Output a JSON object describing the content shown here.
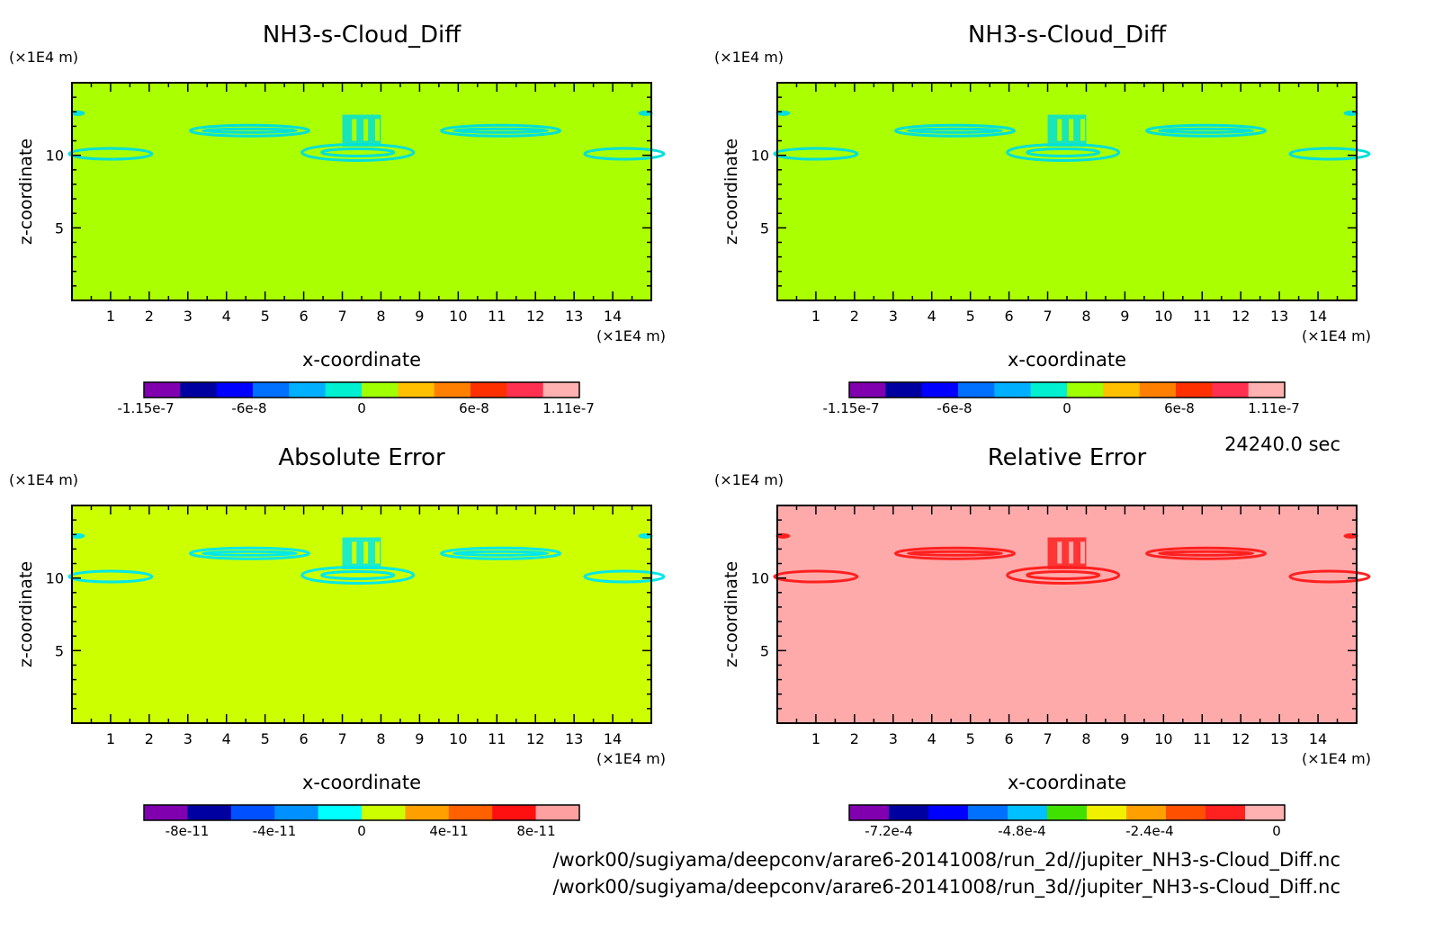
{
  "time_label": "24240.0 sec",
  "footer": {
    "line1": "/work00/sugiyama/deepconv/arare6-20141008/run_2d//jupiter_NH3-s-Cloud_Diff.nc",
    "line2": "/work00/sugiyama/deepconv/arare6-20141008/run_3d//jupiter_NH3-s-Cloud_Diff.nc"
  },
  "chart_data": [
    {
      "type": "heatmap",
      "title": "NH3-s-Cloud_Diff",
      "xlabel": "x-coordinate",
      "ylabel": "z-coordinate",
      "x_unit": "(×1E4 m)",
      "y_unit": "(×1E4 m)",
      "xlim": [
        0,
        15
      ],
      "ylim": [
        0,
        15
      ],
      "x_ticks": [
        1,
        2,
        3,
        4,
        5,
        6,
        7,
        8,
        9,
        10,
        11,
        12,
        13,
        14
      ],
      "y_ticks": [
        5,
        10
      ],
      "background_color": "#aaff00",
      "feature_color": "#00e0d8",
      "colorbar": {
        "colors": [
          "#8000b0",
          "#0000a0",
          "#0000ff",
          "#0070ff",
          "#00b0ff",
          "#00f0d0",
          "#a0ff00",
          "#ffc000",
          "#ff8000",
          "#ff3000",
          "#ff3050",
          "#ffb0b0"
        ],
        "tick_labels": [
          "-1.15e-7",
          "-6e-8",
          "0",
          "6e-8",
          "1.11e-7"
        ]
      }
    },
    {
      "type": "heatmap",
      "title": "NH3-s-Cloud_Diff",
      "xlabel": "x-coordinate",
      "ylabel": "z-coordinate",
      "x_unit": "(×1E4 m)",
      "y_unit": "(×1E4 m)",
      "xlim": [
        0,
        15
      ],
      "ylim": [
        0,
        15
      ],
      "x_ticks": [
        1,
        2,
        3,
        4,
        5,
        6,
        7,
        8,
        9,
        10,
        11,
        12,
        13,
        14
      ],
      "y_ticks": [
        5,
        10
      ],
      "background_color": "#aaff00",
      "feature_color": "#00e0d8",
      "colorbar": {
        "colors": [
          "#8000b0",
          "#0000a0",
          "#0000ff",
          "#0070ff",
          "#00b0ff",
          "#00f0d0",
          "#a0ff00",
          "#ffc000",
          "#ff8000",
          "#ff3000",
          "#ff3050",
          "#ffb0b0"
        ],
        "tick_labels": [
          "-1.15e-7",
          "-6e-8",
          "0",
          "6e-8",
          "1.11e-7"
        ]
      }
    },
    {
      "type": "heatmap",
      "title": "Absolute Error",
      "xlabel": "x-coordinate",
      "ylabel": "z-coordinate",
      "x_unit": "(×1E4 m)",
      "y_unit": "(×1E4 m)",
      "xlim": [
        0,
        15
      ],
      "ylim": [
        0,
        15
      ],
      "x_ticks": [
        1,
        2,
        3,
        4,
        5,
        6,
        7,
        8,
        9,
        10,
        11,
        12,
        13,
        14
      ],
      "y_ticks": [
        5,
        10
      ],
      "background_color": "#ccff00",
      "feature_color": "#00e8e8",
      "colorbar": {
        "colors": [
          "#8000b0",
          "#0000a0",
          "#0050ff",
          "#0090ff",
          "#00ffff",
          "#ccff00",
          "#ffa000",
          "#ff6000",
          "#ff1010",
          "#ffa0a0"
        ],
        "tick_labels": [
          "-8e-11",
          "-4e-11",
          "0",
          "4e-11",
          "8e-11"
        ]
      }
    },
    {
      "type": "heatmap",
      "title": "Relative Error",
      "xlabel": "x-coordinate",
      "ylabel": "z-coordinate",
      "x_unit": "(×1E4 m)",
      "y_unit": "(×1E4 m)",
      "xlim": [
        0,
        15
      ],
      "ylim": [
        0,
        15
      ],
      "x_ticks": [
        1,
        2,
        3,
        4,
        5,
        6,
        7,
        8,
        9,
        10,
        11,
        12,
        13,
        14
      ],
      "y_ticks": [
        5,
        10
      ],
      "background_color": "#ffaaaa",
      "feature_color": "#ff2020",
      "colorbar": {
        "colors": [
          "#8000b0",
          "#0000a0",
          "#0000ff",
          "#0070ff",
          "#00c0ff",
          "#40e000",
          "#f0f000",
          "#ffa000",
          "#ff5000",
          "#ff2020",
          "#ffb0b0"
        ],
        "tick_labels": [
          "-7.2e-4",
          "-4.8e-4",
          "-2.4e-4",
          "0"
        ]
      }
    }
  ]
}
